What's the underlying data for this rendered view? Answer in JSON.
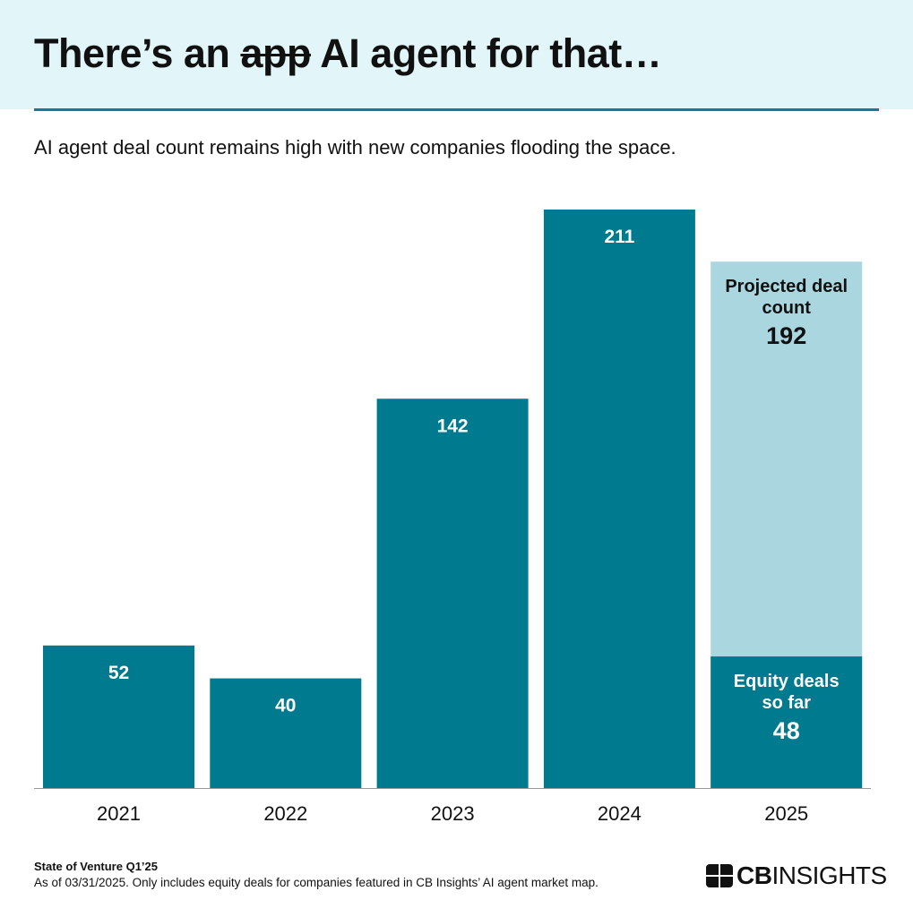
{
  "header": {
    "title_before": "There’s an",
    "title_struck": "app",
    "title_after": "AI agent for that…",
    "subtitle": "AI agent deal count remains high with new companies flooding the space."
  },
  "chart_data": {
    "type": "bar",
    "categories": [
      "2021",
      "2022",
      "2023",
      "2024",
      "2025"
    ],
    "values": [
      52,
      40,
      142,
      211,
      48
    ],
    "projected": {
      "category": "2025",
      "label": "Projected deal count",
      "value": 192
    },
    "actual_2025_label": "Equity deals so far",
    "ylim": [
      0,
      211
    ],
    "grid": false,
    "colors": {
      "bar": "#007A8E",
      "projected": "#A9D6DF"
    }
  },
  "footer": {
    "source": "State of Venture Q1’25",
    "note": "As of 03/31/2025. Only includes equity deals for companies featured in CB Insights’ AI agent market map.",
    "logo_text_bold": "CB",
    "logo_text": "INSIGHTS"
  }
}
